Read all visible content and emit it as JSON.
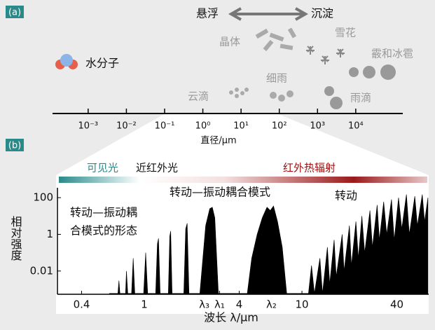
{
  "panel_a": {
    "label": "(a)",
    "suspend": "悬浮",
    "settle": "沉淀",
    "items": [
      "晶体",
      "雪花",
      "霰和冰雹",
      "水分子",
      "云滴",
      "细雨",
      "雨滴"
    ],
    "xlabel": "直径/μm",
    "log_x": true,
    "xlim": [
      0.000117,
      170000
    ],
    "xticks": [
      {
        "value": 0.001,
        "label": "10⁻³"
      },
      {
        "value": 0.01,
        "label": "10⁻²"
      },
      {
        "value": 0.1,
        "label": "10⁻¹"
      },
      {
        "value": 1,
        "label": "10⁰"
      },
      {
        "value": 10,
        "label": "10¹"
      },
      {
        "value": 100,
        "label": "10²"
      },
      {
        "value": 1000,
        "label": "10³"
      },
      {
        "value": 10000,
        "label": "10⁴"
      }
    ]
  },
  "chart_data": {
    "type": "area",
    "panel_label": "(b)",
    "bands": [
      "可见光",
      "近红外光",
      "红外热辐射"
    ],
    "annotations": [
      "转动—振动耦",
      "合模式的形态",
      "转动—振动耦合模式",
      "转动"
    ],
    "ylabel": "相对强度",
    "xlabel": "波长 λ/μm",
    "log_x": true,
    "log_y": true,
    "color": "#000000",
    "xlim": [
      0.281,
      63.7
    ],
    "ylim": [
      0.00054,
      346
    ],
    "xticks": [
      0.4,
      1.0,
      {
        "value": 2.4,
        "label": "λ₃"
      },
      {
        "value": 3.0,
        "label": "λ₁"
      },
      4.0,
      {
        "value": 6.4,
        "label": "λ₂"
      },
      10.0,
      40.0
    ],
    "yticks": [
      100,
      1,
      0.01
    ],
    "x": [
      0.6,
      0.68,
      0.69,
      0.7,
      0.76,
      0.77,
      0.785,
      0.83,
      0.85,
      0.87,
      0.99,
      1.02,
      1.05,
      1.18,
      1.21,
      1.23,
      1.26,
      1.42,
      1.45,
      1.47,
      1.5,
      1.78,
      1.83,
      1.87,
      1.92,
      2.25,
      2.45,
      2.6,
      2.7,
      2.8,
      2.95,
      4.5,
      4.8,
      5.2,
      5.6,
      6.0,
      6.3,
      6.6,
      7.0,
      7.5,
      8.0,
      11,
      11.5,
      12,
      13,
      13.5,
      14.5,
      15,
      16,
      16.5,
      18,
      18.5,
      20,
      20.6,
      22,
      22.8,
      24,
      25,
      27,
      28,
      30,
      31,
      33,
      34.5,
      37,
      38.5,
      41,
      43,
      46,
      48,
      52,
      54,
      58,
      60,
      63
    ],
    "values": [
      0.0006,
      0.0006,
      0.003,
      0.0006,
      0.0006,
      0.01,
      0.0006,
      0.0006,
      0.05,
      0.0006,
      0.0006,
      0.1,
      0.0006,
      0.0006,
      0.3,
      0.6,
      0.0006,
      0.0006,
      0.8,
      1.5,
      0.0006,
      0.0006,
      2,
      4,
      0.0006,
      0.0006,
      3,
      25,
      30,
      8,
      0.0006,
      0.0006,
      0.05,
      1,
      8,
      30,
      20,
      35,
      5,
      0.2,
      0.0006,
      0.0006,
      0.02,
      0.0006,
      0.05,
      0.0006,
      0.2,
      0.002,
      0.5,
      0.005,
      1,
      0.01,
      3,
      0.02,
      5,
      0.05,
      10,
      0.1,
      20,
      0.2,
      40,
      0.5,
      60,
      1,
      80,
      0.5,
      100,
      2,
      150,
      1,
      120,
      3,
      150,
      5,
      100
    ]
  }
}
